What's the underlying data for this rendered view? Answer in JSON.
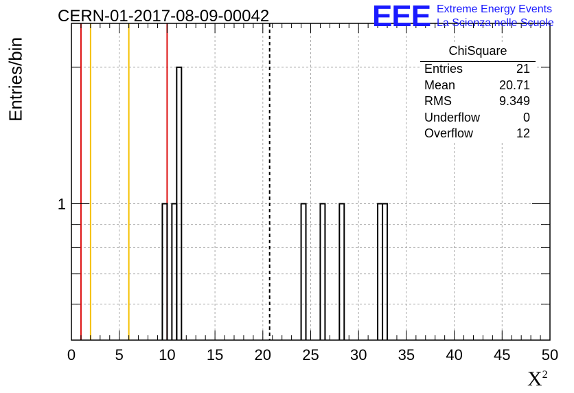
{
  "title": "CERN-01-2017-08-09-00042",
  "logo": {
    "mark": "EEE",
    "line1": "Extreme Energy Events",
    "line2": "La Scienza nelle Scuole"
  },
  "stats": {
    "name": "ChiSquare",
    "rows": [
      {
        "label": "Entries",
        "value": "21"
      },
      {
        "label": "Mean",
        "value": "20.71"
      },
      {
        "label": "RMS",
        "value": "9.349"
      },
      {
        "label": "Underflow",
        "value": "0"
      },
      {
        "label": "Overflow",
        "value": "12"
      }
    ]
  },
  "colors": {
    "red": "#dd1111",
    "yellow": "#f5c000",
    "logo": "#1a1aff"
  },
  "chart_data": {
    "type": "bar",
    "title": "CERN-01-2017-08-09-00042",
    "xlabel": "X",
    "xlabel_superscript": "2",
    "ylabel": "Entries/bin",
    "xlim": [
      0,
      50
    ],
    "ylim_log": [
      0.5,
      2.5
    ],
    "y_scale": "log",
    "grid": true,
    "x_ticks": [
      "0",
      "5",
      "10",
      "15",
      "20",
      "25",
      "30",
      "35",
      "40",
      "45",
      "50"
    ],
    "y_tick_labels": [
      "1"
    ],
    "bin_width": 0.5,
    "bins": [
      {
        "x": 9.5,
        "count": 1
      },
      {
        "x": 10.5,
        "count": 1
      },
      {
        "x": 11.0,
        "count": 2
      },
      {
        "x": 24.0,
        "count": 1
      },
      {
        "x": 26.0,
        "count": 1
      },
      {
        "x": 28.0,
        "count": 1
      },
      {
        "x": 32.0,
        "count": 1
      },
      {
        "x": 32.5,
        "count": 1
      }
    ],
    "vertical_lines": [
      {
        "x": 1,
        "color": "red"
      },
      {
        "x": 2,
        "color": "yellow"
      },
      {
        "x": 6,
        "color": "yellow"
      },
      {
        "x": 10,
        "color": "red"
      },
      {
        "x": 20.71,
        "color": "black",
        "style": "dashed"
      }
    ]
  }
}
